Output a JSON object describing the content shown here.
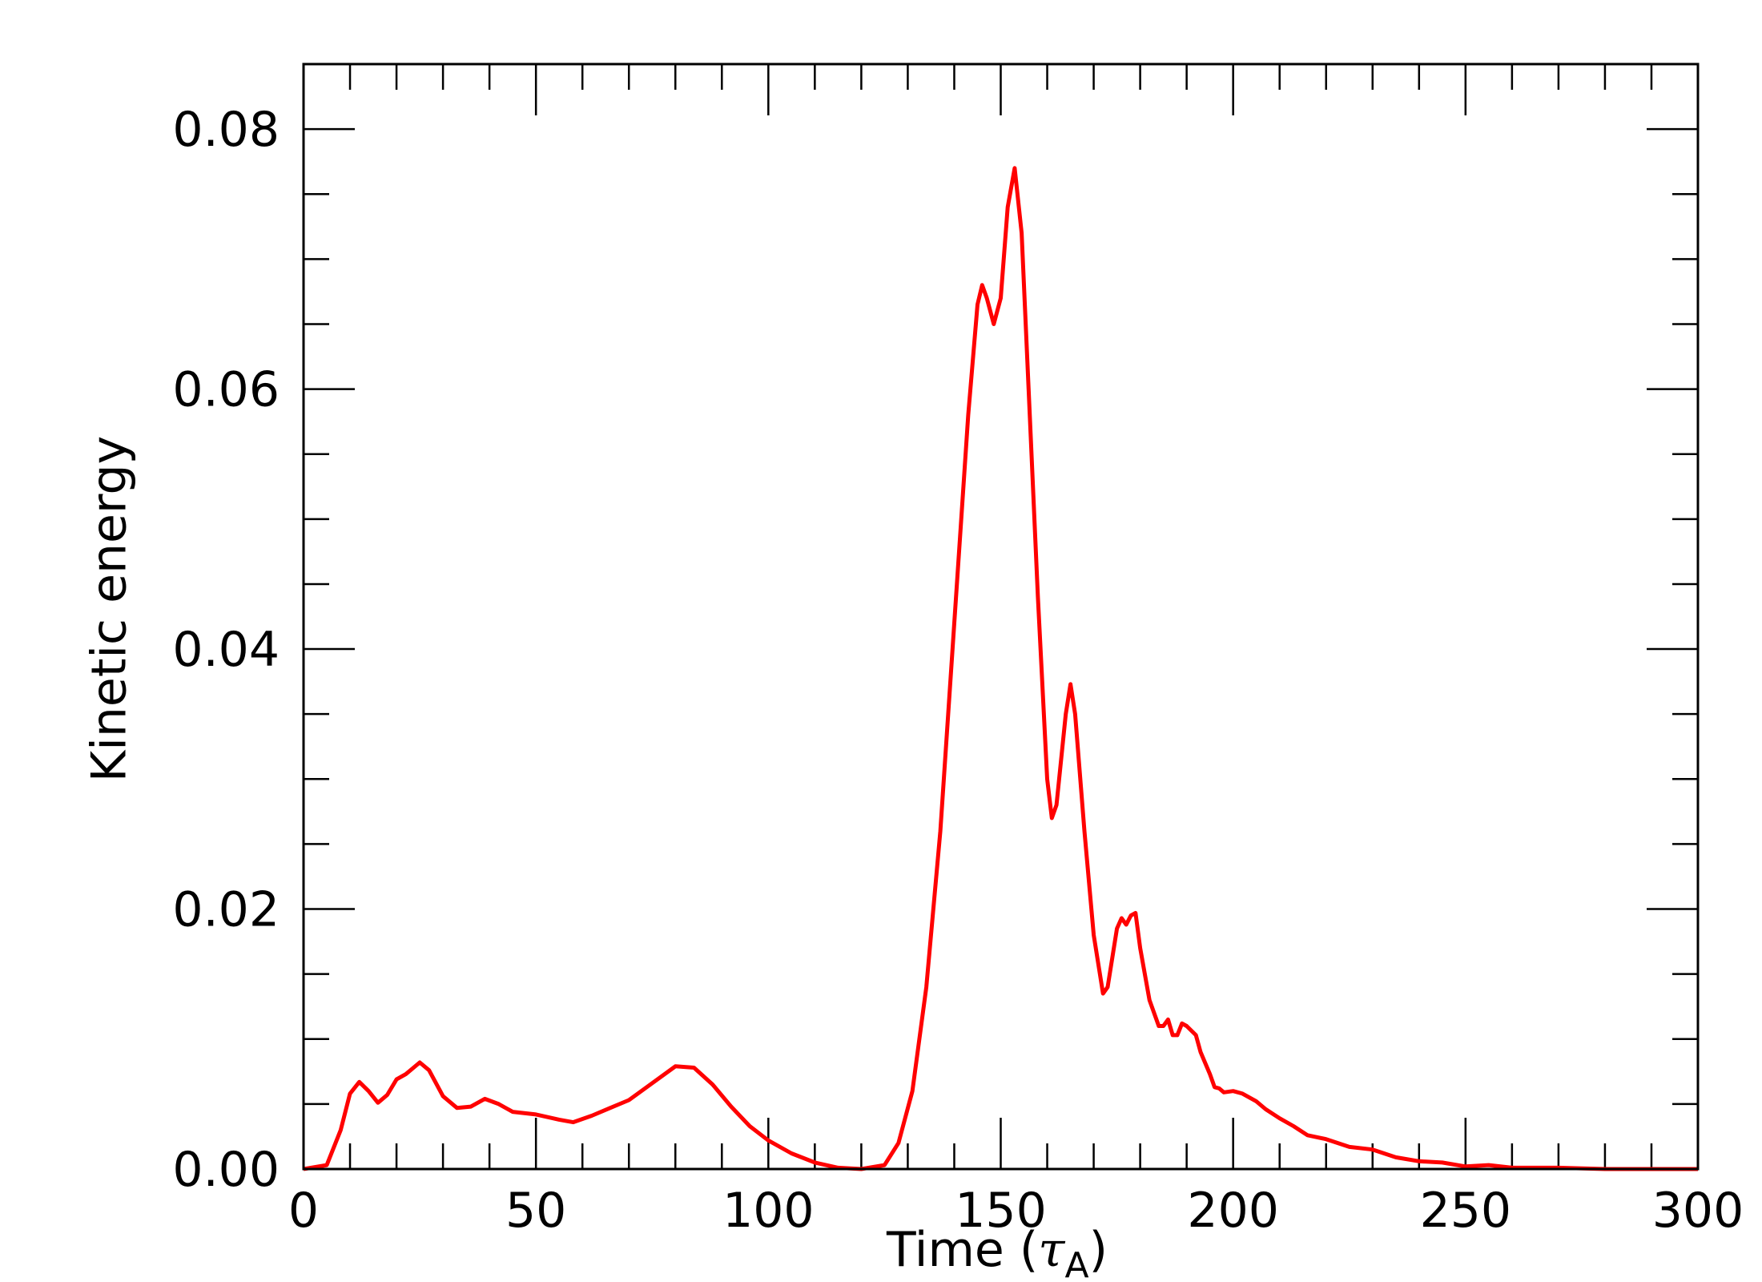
{
  "chart_data": {
    "type": "line",
    "xlabel": [
      "Time (",
      "τ",
      "A",
      ")"
    ],
    "ylabel": "Kinetic energy",
    "xlim": [
      0,
      300
    ],
    "ylim": [
      0,
      0.085
    ],
    "xticks": [
      0,
      50,
      100,
      150,
      200,
      250,
      300
    ],
    "yticks": [
      {
        "value": 0,
        "label": "0.00"
      },
      {
        "value": 0.02,
        "label": "0.02"
      },
      {
        "value": 0.04,
        "label": "0.04"
      },
      {
        "value": 0.06,
        "label": "0.06"
      },
      {
        "value": 0.08,
        "label": "0.08"
      }
    ],
    "xminorticks": [
      10,
      20,
      30,
      40,
      60,
      70,
      80,
      90,
      110,
      120,
      130,
      140,
      160,
      170,
      180,
      190,
      210,
      220,
      230,
      240,
      260,
      270,
      280,
      290
    ],
    "yminorticks": [
      0.005,
      0.01,
      0.015,
      0.025,
      0.03,
      0.035,
      0.045,
      0.05,
      0.055,
      0.065,
      0.07,
      0.075
    ],
    "grid": false,
    "series": [
      {
        "name": "Kinetic energy",
        "color": "#ff0000",
        "x": [
          0,
          5,
          8,
          10,
          12,
          14,
          16,
          18,
          20,
          22,
          25,
          27,
          30,
          33,
          36,
          39,
          42,
          45,
          50,
          55,
          58,
          62,
          66,
          70,
          75,
          80,
          84,
          88,
          92,
          96,
          100,
          105,
          110,
          115,
          120,
          125,
          128,
          131,
          134,
          137,
          140,
          143,
          145,
          146,
          147,
          148.5,
          150,
          151.5,
          153,
          154.5,
          156,
          158,
          160,
          161,
          162,
          164,
          165,
          166,
          168,
          170,
          172,
          173,
          175,
          176,
          177,
          178,
          179,
          180,
          182,
          184,
          185,
          186,
          187,
          188,
          189,
          190,
          192,
          193,
          195,
          196,
          197,
          198,
          200,
          202,
          205,
          207,
          210,
          213,
          216,
          220,
          225,
          230,
          235,
          240,
          245,
          250,
          255,
          260,
          270,
          280,
          300
        ],
        "values": [
          0,
          0.0003,
          0.003,
          0.0058,
          0.0067,
          0.006,
          0.0051,
          0.0057,
          0.0069,
          0.0073,
          0.0082,
          0.0076,
          0.0056,
          0.0047,
          0.0048,
          0.0054,
          0.005,
          0.0044,
          0.0042,
          0.0038,
          0.0036,
          0.0041,
          0.0047,
          0.0053,
          0.0066,
          0.0079,
          0.0078,
          0.0065,
          0.0048,
          0.0033,
          0.0022,
          0.0012,
          0.0005,
          0.0001,
          0,
          0.0003,
          0.002,
          0.006,
          0.014,
          0.026,
          0.042,
          0.058,
          0.0665,
          0.068,
          0.067,
          0.065,
          0.067,
          0.074,
          0.077,
          0.072,
          0.06,
          0.044,
          0.03,
          0.027,
          0.028,
          0.035,
          0.0373,
          0.035,
          0.026,
          0.018,
          0.0135,
          0.014,
          0.0185,
          0.0193,
          0.0188,
          0.0195,
          0.0197,
          0.017,
          0.013,
          0.011,
          0.011,
          0.0115,
          0.0103,
          0.0103,
          0.0112,
          0.011,
          0.0103,
          0.009,
          0.0073,
          0.0063,
          0.0062,
          0.0059,
          0.006,
          0.0058,
          0.0052,
          0.0046,
          0.0039,
          0.0033,
          0.0026,
          0.0023,
          0.0017,
          0.0015,
          0.0009,
          0.0006,
          0.0005,
          0.0002,
          0.0003,
          0.0001,
          0.0001,
          0,
          0
        ]
      }
    ]
  }
}
